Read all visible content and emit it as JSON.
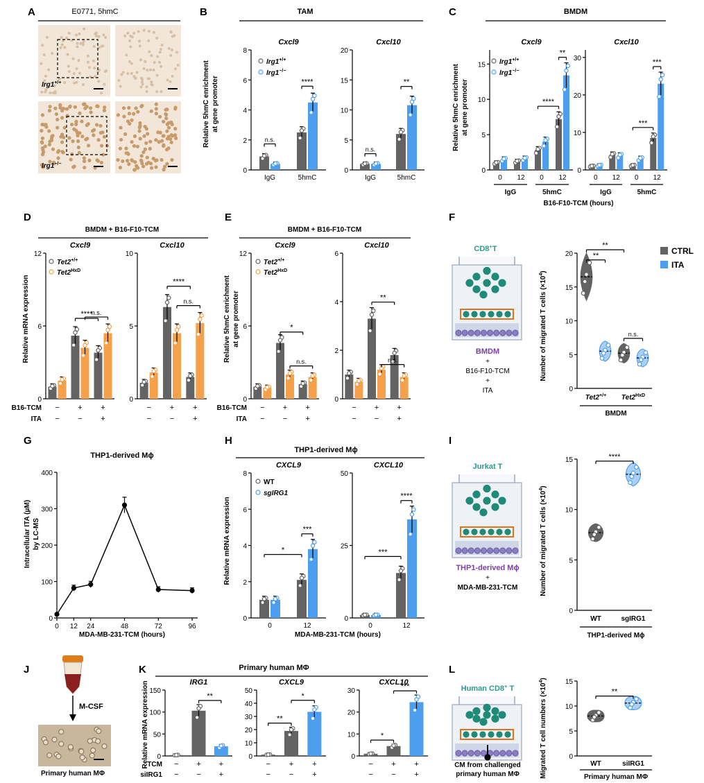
{
  "colors": {
    "grey": "#636363",
    "blue": "#4e9ef0",
    "orange": "#f5a04a",
    "lightBlueFill": "#aad0f7",
    "lightOrangeFill": "#f8c78f",
    "teal": "#2b9a8c",
    "purple": "#7b3fa3",
    "cellTeal": "#1f8a77",
    "boxOrange": "#e0731a"
  },
  "panels": {
    "A": {
      "letter": "A",
      "title": "E0771, 5hmC",
      "row1_label": "Irg1",
      "row1_sup": "+/+",
      "row2_label": "Irg1",
      "row2_sup": "−/−"
    },
    "B": {
      "letter": "B",
      "header": "TAM",
      "legend1": "Irg1",
      "legend1_sup": "+/+",
      "legend2": "Irg1",
      "legend2_sup": "−/−",
      "ylabel1": "Relative 5hmC enrichment",
      "ylabel2": "at gene promoter"
    },
    "C": {
      "letter": "C",
      "header": "BMDM",
      "ylabel1": "Relative 5hmC enrichment",
      "ylabel2": "at gene promoter",
      "xlabel": "B16-F10-TCM (hours)"
    },
    "D": {
      "letter": "D",
      "header": "BMDM + B16-F10-TCM",
      "legend1": "Tet2",
      "legend1_sup": "+/+",
      "legend2": "Tet2",
      "legend2_sup": "HxD",
      "ylabel": "Relative mRNA expression",
      "row1": "B16-TCM",
      "row2": "ITA"
    },
    "E": {
      "letter": "E",
      "header": "BMDM + B16-F10-TCM",
      "ylabel1": "Relative 5hmC enrichment",
      "ylabel2": "at gene promoter",
      "row1": "B16-TCM",
      "row2": "ITA"
    },
    "F": {
      "letter": "F",
      "cell_label": "CD8",
      "cell_sup": "+",
      "cell_suffix": "T",
      "bottom_line1": "BMDM",
      "bottom_line2": "+",
      "bottom_line3": "B16-F10-TCM",
      "bottom_line4": "+",
      "bottom_line5": "ITA",
      "legend_ctrl": "CTRL",
      "legend_ita": "ITA",
      "ylabel": "Number of migrated T cells (×10",
      "ylabel_sup": "4",
      "ylabel_end": ")",
      "group1": "Tet2",
      "group1_sup": "+/+",
      "group2": "Tet2",
      "group2_sup": "HxD",
      "xgroup": "BMDM"
    },
    "G": {
      "letter": "G",
      "title": "THP1-derived Mϕ",
      "ylabel1": "Intracellular ITA (μM)",
      "ylabel2": "by LC-MS",
      "xlabel": "MDA-MB-231-TCM (hours)"
    },
    "H": {
      "letter": "H",
      "header": "THP1-derived Mϕ",
      "legend1": "WT",
      "legend2": "sgIRG1",
      "ylabel": "Relative mRNA expression",
      "xlabel": "MDA-MB-231-TCM (hours)"
    },
    "I": {
      "letter": "I",
      "cell_label": "Jurkat T",
      "bottom_line1": "THP1-derived Mϕ",
      "bottom_line2": "+",
      "bottom_line3": "MDA-MB-231-TCM",
      "ylabel": "Number of migrated T cells (×10",
      "ylabel_sup": "4",
      "ylabel_end": ")",
      "cat1": "WT",
      "cat2": "sgIRG1",
      "xgroup": "THP1-derived Mϕ"
    },
    "J": {
      "letter": "J",
      "arrow_label": "M-CSF",
      "caption": "Primary human MΦ"
    },
    "K": {
      "letter": "K",
      "header": "Primary human MΦ",
      "ylabel": "Relative mRNA expression",
      "row1": "TCM",
      "row2": "siIRG1"
    },
    "L": {
      "letter": "L",
      "cell_label": "Human CD8",
      "cell_sup": "+",
      "cell_suffix": " T",
      "bottom_line1": "CM from challenged",
      "bottom_line2": "primary human MΦ",
      "ylabel": "Migrated T cell numbers (×10",
      "ylabel_sup": "4",
      "ylabel_end": ")",
      "cat1": "WT",
      "cat2": "siIRG1",
      "xgroup": "Primary human MΦ"
    }
  },
  "chart_data": [
    {
      "id": "B-Cxcl9",
      "type": "bar",
      "title": "Cxcl9",
      "categories": [
        "IgG",
        "5hmC"
      ],
      "ylim": [
        0,
        8
      ],
      "yticks": [
        0,
        2,
        4,
        6,
        8
      ],
      "series": [
        {
          "name": "Irg1+/+",
          "values": [
            0.9,
            2.5
          ]
        },
        {
          "name": "Irg1−/−",
          "values": [
            0.4,
            4.5
          ]
        }
      ],
      "significance": [
        {
          "label": "n.s.",
          "group": 0
        },
        {
          "label": "****",
          "group": 1
        }
      ]
    },
    {
      "id": "B-Cxcl10",
      "type": "bar",
      "title": "Cxcl10",
      "categories": [
        "IgG",
        "5hmC"
      ],
      "ylim": [
        0,
        20
      ],
      "yticks": [
        0,
        5,
        10,
        15,
        20
      ],
      "series": [
        {
          "name": "Irg1+/+",
          "values": [
            1.0,
            6.0
          ]
        },
        {
          "name": "Irg1−/−",
          "values": [
            1.0,
            10.8
          ]
        }
      ],
      "significance": [
        {
          "label": "n.s.",
          "group": 0
        },
        {
          "label": "**",
          "group": 1
        }
      ]
    },
    {
      "id": "C-Cxcl9",
      "type": "bar",
      "title": "Cxcl9",
      "categories": [
        "0",
        "12",
        "0",
        "12"
      ],
      "groups": [
        "IgG",
        "5hmC"
      ],
      "ylim": [
        0,
        17
      ],
      "yticks": [
        0,
        5,
        10,
        15
      ],
      "series": [
        {
          "name": "Irg1+/+",
          "values": [
            1.0,
            1.2,
            2.8,
            7.2
          ]
        },
        {
          "name": "Irg1−/−",
          "values": [
            1.5,
            1.6,
            4.0,
            13.4
          ]
        }
      ],
      "significance": [
        {
          "label": "****",
          "from": "5hmC 0",
          "to": "5hmC 12"
        },
        {
          "label": "**",
          "group": 3
        }
      ]
    },
    {
      "id": "C-Cxcl10",
      "type": "bar",
      "title": "Cxcl10",
      "categories": [
        "0",
        "12",
        "0",
        "12"
      ],
      "groups": [
        "IgG",
        "5hmC"
      ],
      "ylim": [
        0,
        32
      ],
      "yticks": [
        0,
        10,
        20,
        30
      ],
      "series": [
        {
          "name": "Irg1+/+",
          "values": [
            1.0,
            4.0,
            1.2,
            8.5
          ]
        },
        {
          "name": "Irg1−/−",
          "values": [
            1.2,
            3.8,
            3.0,
            23.0
          ]
        }
      ],
      "significance": [
        {
          "label": "***",
          "from": "5hmC 0",
          "to": "5hmC 12"
        },
        {
          "label": "***",
          "group": 3
        }
      ]
    },
    {
      "id": "D-Cxcl9",
      "type": "bar",
      "title": "Cxcl9",
      "categories": [
        "B16-TCM − / ITA −",
        "B16-TCM + / ITA −",
        "B16-TCM + / ITA +"
      ],
      "ylim": [
        0,
        12
      ],
      "yticks": [
        0,
        6,
        12
      ],
      "series": [
        {
          "name": "Tet2+/+",
          "values": [
            1.0,
            5.2,
            3.8
          ]
        },
        {
          "name": "Tet2HxD",
          "values": [
            1.5,
            4.2,
            5.4
          ]
        }
      ],
      "significance": [
        {
          "label": "****"
        },
        {
          "label": "n.s."
        }
      ]
    },
    {
      "id": "D-Cxcl10",
      "type": "bar",
      "title": "Cxcl10",
      "categories": [
        "B16-TCM − / ITA −",
        "B16-TCM + / ITA −",
        "B16-TCM + / ITA +"
      ],
      "ylim": [
        0,
        10
      ],
      "yticks": [
        0,
        5,
        10
      ],
      "series": [
        {
          "name": "Tet2+/+",
          "values": [
            1.1,
            6.3,
            1.5
          ]
        },
        {
          "name": "Tet2HxD",
          "values": [
            1.8,
            4.5,
            5.2
          ]
        }
      ],
      "significance": [
        {
          "label": "****"
        },
        {
          "label": "n.s."
        }
      ]
    },
    {
      "id": "E-Cxcl9",
      "type": "bar",
      "title": "Cxcl9",
      "categories": [
        "B16-TCM − / ITA −",
        "B16-TCM + / ITA −",
        "B16-TCM + / ITA +"
      ],
      "ylim": [
        0,
        12
      ],
      "yticks": [
        0,
        6,
        12
      ],
      "series": [
        {
          "name": "Tet2+/+",
          "values": [
            1.0,
            4.6,
            1.2
          ]
        },
        {
          "name": "Tet2HxD",
          "values": [
            0.9,
            2.0,
            1.8
          ]
        }
      ],
      "significance": [
        {
          "label": "*"
        },
        {
          "label": "n.s."
        }
      ]
    },
    {
      "id": "E-Cxcl10",
      "type": "bar",
      "title": "Cxcl10",
      "categories": [
        "B16-TCM − / ITA −",
        "B16-TCM + / ITA −",
        "B16-TCM + / ITA +"
      ],
      "ylim": [
        0,
        6
      ],
      "yticks": [
        0,
        2,
        4,
        6
      ],
      "series": [
        {
          "name": "Tet2+/+",
          "values": [
            1.0,
            3.3,
            1.8
          ]
        },
        {
          "name": "Tet2HxD",
          "values": [
            0.7,
            1.2,
            0.9
          ]
        }
      ],
      "significance": [
        {
          "label": "**"
        },
        {
          "label": "n.s."
        }
      ]
    },
    {
      "id": "F",
      "type": "violin",
      "categories": [
        "Tet2+/+ CTRL",
        "Tet2+/+ ITA",
        "Tet2HxD CTRL",
        "Tet2HxD ITA"
      ],
      "ylim": [
        0,
        20
      ],
      "yticks": [
        0,
        5,
        10,
        15,
        20
      ],
      "values": [
        16.5,
        5.5,
        5.2,
        4.5
      ],
      "significance": [
        {
          "label": "**"
        },
        {
          "label": "**"
        },
        {
          "label": "n.s."
        }
      ]
    },
    {
      "id": "G",
      "type": "line",
      "title": "THP1-derived Mϕ",
      "x": [
        0,
        12,
        24,
        48,
        72,
        96
      ],
      "y": [
        10,
        82,
        92,
        310,
        78,
        75
      ],
      "xlim": [
        0,
        96
      ],
      "ylim": [
        0,
        400
      ],
      "xticks": [
        0,
        12,
        24,
        48,
        72,
        96
      ],
      "yticks": [
        0,
        100,
        200,
        300,
        400
      ]
    },
    {
      "id": "H-CXCL9",
      "type": "bar",
      "title": "CXCL9",
      "categories": [
        "0",
        "12"
      ],
      "ylim": [
        0,
        8
      ],
      "yticks": [
        0,
        2,
        4,
        6,
        8
      ],
      "series": [
        {
          "name": "WT",
          "values": [
            1.0,
            2.1
          ]
        },
        {
          "name": "sgIRG1",
          "values": [
            1.0,
            3.8
          ]
        }
      ],
      "significance": [
        {
          "label": "*"
        },
        {
          "label": "***"
        }
      ]
    },
    {
      "id": "H-CXCL10",
      "type": "bar",
      "title": "CXCL10",
      "categories": [
        "0",
        "12"
      ],
      "ylim": [
        0,
        50
      ],
      "yticks": [
        0,
        25,
        50
      ],
      "series": [
        {
          "name": "WT",
          "values": [
            1.0,
            15.5
          ]
        },
        {
          "name": "sgIRG1",
          "values": [
            1.0,
            34.0
          ]
        }
      ],
      "significance": [
        {
          "label": "***"
        },
        {
          "label": "****"
        }
      ]
    },
    {
      "id": "I",
      "type": "violin",
      "categories": [
        "WT",
        "sgIRG1"
      ],
      "ylim": [
        0,
        15
      ],
      "yticks": [
        0,
        5,
        10,
        15
      ],
      "values": [
        7.7,
        13.5
      ],
      "significance": [
        {
          "label": "****"
        }
      ]
    },
    {
      "id": "K-IRG1",
      "type": "bar",
      "title": "IRG1",
      "categories": [
        "− / −",
        "+ / −",
        "+ / +"
      ],
      "ylim": [
        0,
        150
      ],
      "yticks": [
        0,
        50,
        100,
        150
      ],
      "values": [
        2.0,
        103.0,
        22.0
      ],
      "significance": [
        {
          "label": "**"
        }
      ]
    },
    {
      "id": "K-CXCL9",
      "type": "bar",
      "title": "CXCL9",
      "categories": [
        "− / −",
        "+ / −",
        "+ / +"
      ],
      "ylim": [
        0,
        50
      ],
      "yticks": [
        0,
        10,
        20,
        30,
        40,
        50
      ],
      "values": [
        1.0,
        19.0,
        33.5
      ],
      "significance": [
        {
          "label": "**"
        },
        {
          "label": "*"
        }
      ]
    },
    {
      "id": "K-CXCL10",
      "type": "bar",
      "title": "CXCL10",
      "categories": [
        "− / −",
        "+ / −",
        "+ / +"
      ],
      "ylim": [
        0,
        30
      ],
      "yticks": [
        0,
        10,
        20,
        30
      ],
      "values": [
        1.0,
        4.5,
        24.5
      ],
      "significance": [
        {
          "label": "*"
        },
        {
          "label": "***"
        }
      ]
    },
    {
      "id": "L",
      "type": "violin",
      "categories": [
        "WT",
        "siIRG1"
      ],
      "ylim": [
        0,
        15
      ],
      "yticks": [
        0,
        5,
        10,
        15
      ],
      "values": [
        8.0,
        10.6
      ],
      "significance": [
        {
          "label": "**"
        }
      ]
    }
  ]
}
